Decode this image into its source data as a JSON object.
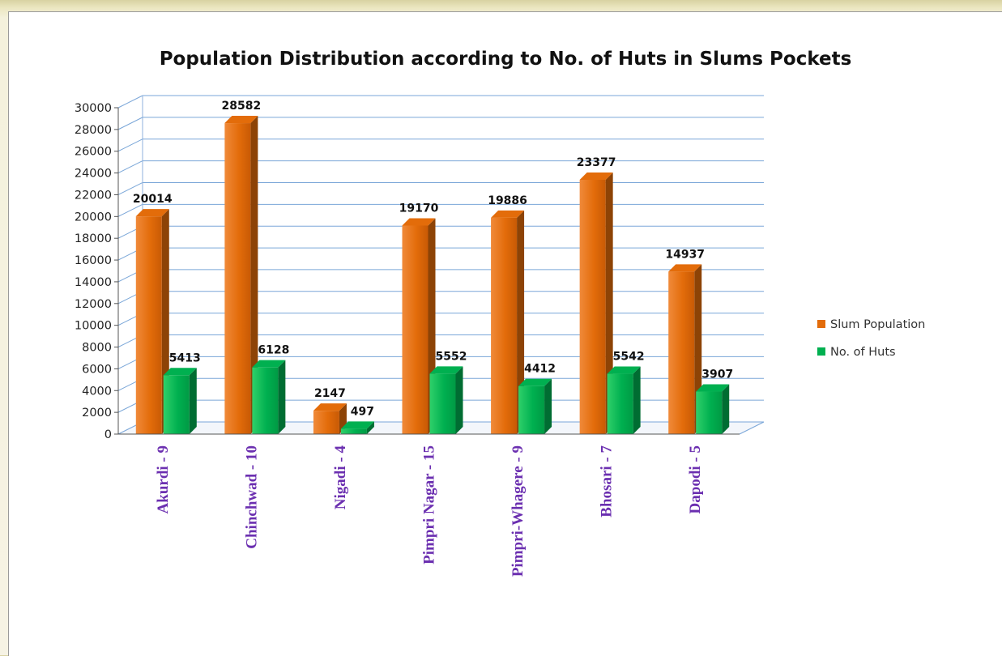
{
  "chart_data": {
    "type": "bar",
    "title": "Population Distribution according to No. of Huts in Slums Pockets",
    "categories": [
      "Akurdi - 9",
      "Chinchwad - 10",
      "Nigadi - 4",
      "Pimpri Nagar - 15",
      "Pimpri-Whagere - 9",
      "Bhosari - 7",
      "Dapodi - 5"
    ],
    "series": [
      {
        "name": "Slum Population",
        "color": "#e36c0a",
        "values": [
          20014,
          28582,
          2147,
          19170,
          19886,
          23377,
          14937
        ]
      },
      {
        "name": "No. of Huts",
        "color": "#00b050",
        "values": [
          5413,
          6128,
          497,
          5552,
          4412,
          5542,
          3907
        ]
      }
    ],
    "ylim": [
      0,
      30000
    ],
    "yticks": [
      0,
      2000,
      4000,
      6000,
      8000,
      10000,
      12000,
      14000,
      16000,
      18000,
      20000,
      22000,
      24000,
      26000,
      28000,
      30000
    ],
    "grid": true,
    "data_labels": true,
    "legend_position": "right",
    "xlabel": "",
    "ylabel": ""
  }
}
